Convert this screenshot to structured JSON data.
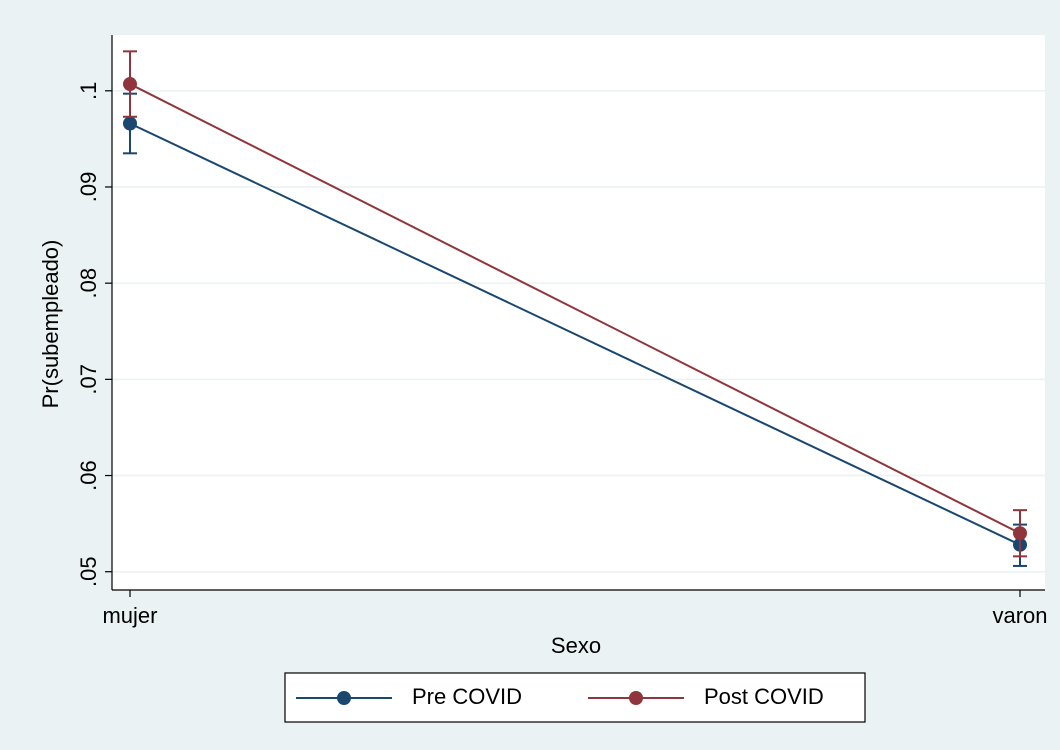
{
  "chart_data": {
    "type": "line",
    "categories": [
      "mujer",
      "varon"
    ],
    "x_label": "Sexo",
    "y_label": "Pr(subempleado)",
    "series": [
      {
        "name": "Pre COVID",
        "color": "#1a476f",
        "values": [
          0.0966,
          0.0528
        ],
        "lower": [
          0.0935,
          0.0506
        ],
        "upper": [
          0.0997,
          0.0549
        ]
      },
      {
        "name": "Post COVID",
        "color": "#90353b",
        "values": [
          0.1007,
          0.054
        ],
        "lower": [
          0.0973,
          0.0516
        ],
        "upper": [
          0.1041,
          0.0564
        ]
      }
    ],
    "ylim": [
      0.0481,
      0.1058
    ],
    "yticks": [
      {
        "value": 0.05,
        "label": ".05"
      },
      {
        "value": 0.06,
        "label": ".06"
      },
      {
        "value": 0.07,
        "label": ".07"
      },
      {
        "value": 0.08,
        "label": ".08"
      },
      {
        "value": 0.09,
        "label": ".09"
      },
      {
        "value": 0.1,
        "label": ".1"
      }
    ],
    "grid": true,
    "legend": "bottom"
  }
}
